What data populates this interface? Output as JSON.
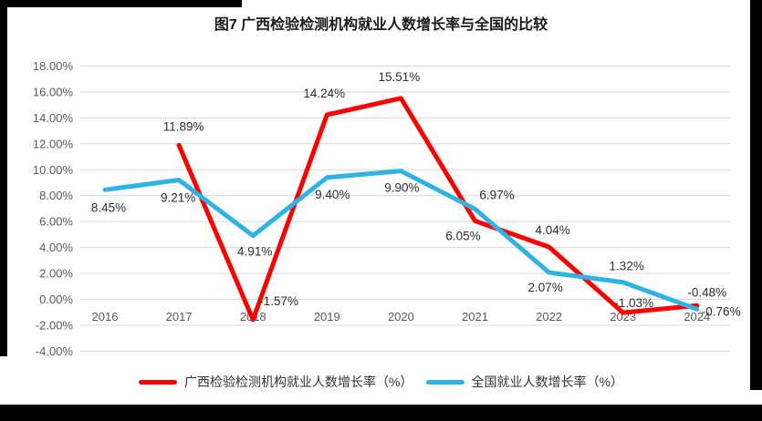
{
  "title": "图7 广西检验检测机构就业人数增长率与全国的比较",
  "frame": {
    "border_color": "#000000"
  },
  "chart_data": {
    "type": "line",
    "title": "图7 广西检验检测机构就业人数增长率与全国的比较",
    "categories": [
      "2016",
      "2017",
      "2018",
      "2019",
      "2020",
      "2021",
      "2022",
      "2023",
      "2024"
    ],
    "series": [
      {
        "id": "guangxi",
        "name": "广西检验检测机构就业人数增长率（%）",
        "color": "#fe0000",
        "values": [
          null,
          11.89,
          -1.57,
          14.24,
          15.51,
          6.05,
          4.04,
          -1.03,
          -0.48
        ],
        "data_labels": [
          "",
          "11.89%",
          "-1.57%",
          "14.24%",
          "15.51%",
          "6.05%",
          "4.04%",
          "-1.03%",
          "-0.48%"
        ],
        "label_offsets": [
          null,
          [
            5,
            -16,
            "m"
          ],
          [
            7,
            -16,
            "s"
          ],
          [
            -3,
            -19,
            "m"
          ],
          [
            -2,
            -19,
            "m"
          ],
          [
            -13,
            21,
            "m"
          ],
          [
            4,
            -14,
            "m"
          ],
          [
            12,
            -6,
            "m"
          ],
          [
            11,
            -10,
            "m"
          ]
        ]
      },
      {
        "id": "national",
        "name": "全国就业人数增长率（%）",
        "color": "#2db3e8",
        "values": [
          8.45,
          9.21,
          4.91,
          9.4,
          9.9,
          6.97,
          2.07,
          1.32,
          -0.76
        ],
        "data_labels": [
          "8.45%",
          "9.21%",
          "4.91%",
          "9.40%",
          "9.90%",
          "6.97%",
          "2.07%",
          "1.32%",
          "-0.76%"
        ],
        "label_offsets": [
          [
            4,
            24,
            "m"
          ],
          [
            -1,
            24,
            "m"
          ],
          [
            2,
            22,
            "m"
          ],
          [
            6,
            23,
            "m"
          ],
          [
            1,
            23,
            "m"
          ],
          [
            24,
            -11,
            "m"
          ],
          [
            -4,
            21,
            "m"
          ],
          [
            4,
            -13,
            "m"
          ],
          [
            5,
            7,
            "s"
          ]
        ]
      }
    ],
    "y_axis": {
      "min": -4,
      "max": 18,
      "step": 2,
      "tick_labels": [
        "18.00%",
        "16.00%",
        "14.00%",
        "12.00%",
        "10.00%",
        "8.00%",
        "6.00%",
        "4.00%",
        "2.00%",
        "0.00%",
        "-2.00%",
        "-4.00%"
      ]
    },
    "grid": true,
    "gridline_color": "#d9d9d9",
    "legend_position": "bottom"
  }
}
